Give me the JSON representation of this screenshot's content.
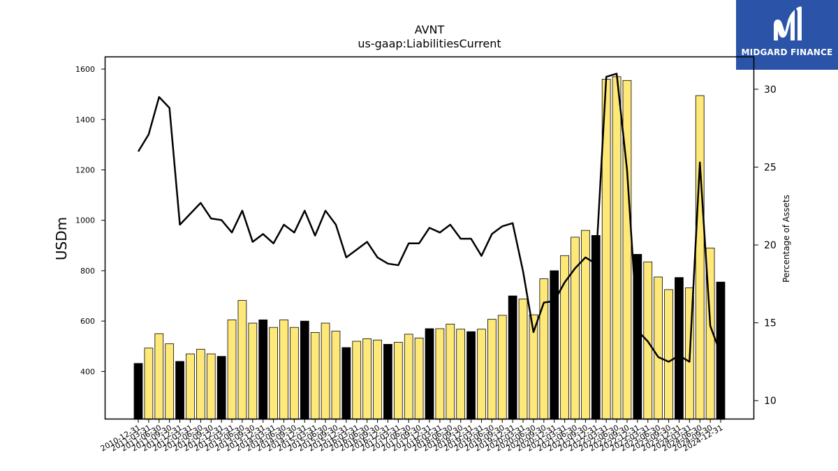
{
  "header": {
    "ticker": "AVNT",
    "metric": "us-gaap:LiabilitiesCurrent"
  },
  "logo": {
    "brand": "MIDGARD FINANCE",
    "background": "#2b54a8"
  },
  "colors": {
    "bar_q4": "#000000",
    "bar_other": "#fde878",
    "line": "#000000"
  },
  "chart_data": {
    "type": "bar",
    "title": "AVNT",
    "subtitle": "us-gaap:LiabilitiesCurrent",
    "ylabel": "USDm",
    "y2label": "Percentage of Assets",
    "ylim": [
      210,
      1650
    ],
    "y2lim": [
      8.8,
      32.1
    ],
    "yticks": [
      400,
      600,
      800,
      1000,
      1200,
      1400,
      1600
    ],
    "y2ticks": [
      10,
      15,
      20,
      25,
      30
    ],
    "categories": [
      "2010-12-31",
      "2011-03-31",
      "2011-06-30",
      "2011-09-30",
      "2011-12-31",
      "2012-03-31",
      "2012-06-30",
      "2012-09-30",
      "2012-12-31",
      "2013-03-31",
      "2013-06-30",
      "2013-09-30",
      "2013-12-31",
      "2014-03-31",
      "2014-06-30",
      "2014-09-30",
      "2014-12-31",
      "2015-03-31",
      "2015-06-30",
      "2015-09-30",
      "2015-12-31",
      "2016-03-31",
      "2016-06-30",
      "2016-09-30",
      "2016-12-31",
      "2017-03-31",
      "2017-06-30",
      "2017-09-30",
      "2017-12-31",
      "2018-03-31",
      "2018-06-30",
      "2018-09-30",
      "2018-12-31",
      "2019-03-31",
      "2019-06-30",
      "2019-09-30",
      "2019-12-31",
      "2020-03-31",
      "2020-06-30",
      "2020-09-30",
      "2020-12-31",
      "2021-03-31",
      "2021-06-30",
      "2021-09-30",
      "2021-12-31",
      "2022-03-31",
      "2022-06-30",
      "2022-09-30",
      "2022-12-31",
      "2023-03-31",
      "2023-06-30",
      "2023-09-30",
      "2023-12-31",
      "2024-03-31",
      "2024-06-30",
      "2024-09-30",
      "2024-12-31"
    ],
    "series": [
      {
        "name": "",
        "type": "bar",
        "axis": "left",
        "values": [
          432,
          493,
          550,
          510,
          440,
          470,
          488,
          470,
          460,
          605,
          682,
          592,
          605,
          575,
          605,
          575,
          600,
          555,
          592,
          560,
          495,
          520,
          530,
          525,
          508,
          516,
          548,
          533,
          570,
          570,
          588,
          568,
          558,
          568,
          607,
          623,
          700,
          688,
          625,
          768,
          800,
          860,
          933,
          960,
          940,
          1560,
          1570,
          1555,
          865,
          835,
          775,
          725,
          773,
          732,
          1495,
          890,
          755
        ]
      },
      {
        "name": "",
        "type": "line",
        "axis": "right",
        "values": [
          26.0,
          27.1,
          29.5,
          28.8,
          21.3,
          22.0,
          22.7,
          21.7,
          21.6,
          20.8,
          22.2,
          20.2,
          20.7,
          20.1,
          21.3,
          20.8,
          22.2,
          20.6,
          22.2,
          21.3,
          19.2,
          19.7,
          20.2,
          19.2,
          18.8,
          18.7,
          20.1,
          20.1,
          21.1,
          20.8,
          21.3,
          20.4,
          20.4,
          19.3,
          20.7,
          21.2,
          21.4,
          18.3,
          14.4,
          16.3,
          16.4,
          17.6,
          18.5,
          19.2,
          18.8,
          30.8,
          31.0,
          24.8,
          14.5,
          13.8,
          12.8,
          12.5,
          12.9,
          12.5,
          25.3,
          14.8,
          13.0
        ]
      }
    ],
    "q4_highlight": "Bars for 12-31 dates drawn black, other quarters yellow",
    "grid": false,
    "legend": "none"
  }
}
